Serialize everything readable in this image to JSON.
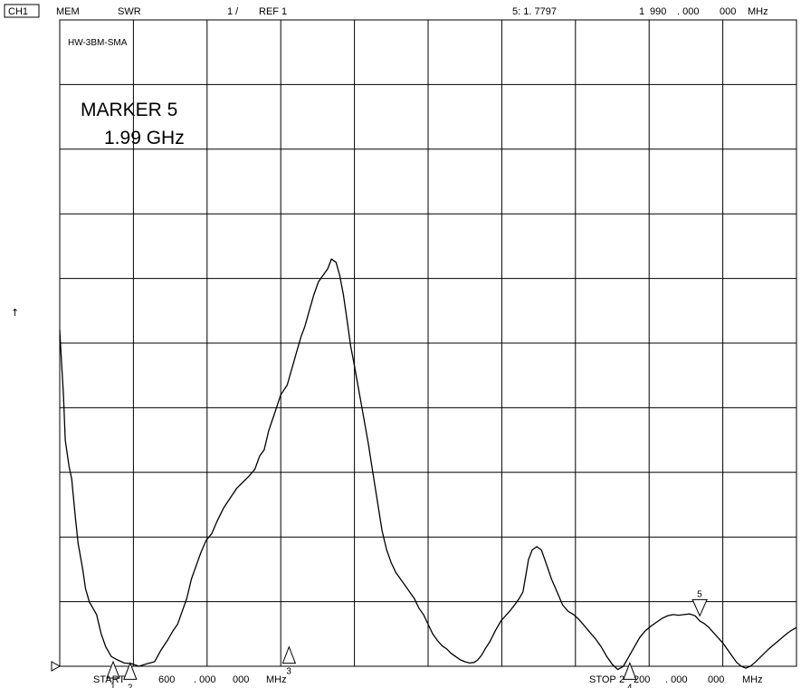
{
  "header": {
    "channel": "CH1",
    "mem": "MEM",
    "mode": "SWR",
    "scale": "1 /",
    "ref": "REF 1",
    "marker_readout": "5:  1. 7797",
    "marker_freq_a": "1",
    "marker_freq_b": "990",
    "marker_freq_c": ". 000",
    "marker_freq_d": "000",
    "marker_freq_unit": "MHz"
  },
  "footer": {
    "start_label": "START",
    "start_a": "600",
    "start_b": ". 000",
    "start_c": "000",
    "start_unit": "MHz",
    "stop_label": "STOP",
    "stop_a": "2",
    "stop_b": "200",
    "stop_c": ". 000",
    "stop_d": "000",
    "stop_unit": "MHz"
  },
  "annotations": {
    "device": "HW-3BM-SMA",
    "marker_title": "MARKER 5",
    "marker_value": "1.99 GHz"
  },
  "reference_arrow": "↑",
  "chart_data": {
    "type": "line",
    "xlabel": "",
    "ylabel": "",
    "xlim": [
      600,
      2200
    ],
    "ylim": [
      1,
      11
    ],
    "grid": true,
    "x_unit": "MHz",
    "y_unit": "SWR",
    "reference_level": 1,
    "scale_per_div": 1,
    "series": [
      {
        "x": [
          600,
          604,
          608,
          612,
          620,
          626,
          634,
          640,
          650,
          656,
          664,
          672,
          680,
          690,
          700,
          712,
          725,
          740,
          756,
          772,
          790,
          806,
          820,
          834,
          846,
          856,
          866,
          876,
          886,
          896,
          906,
          918,
          930,
          942,
          956,
          970,
          984,
          998,
          1012,
          1024,
          1034,
          1044,
          1054,
          1066,
          1080,
          1094,
          1108,
          1116,
          1124,
          1132,
          1142,
          1152,
          1162,
          1172,
          1182,
          1190,
          1200,
          1208,
          1216,
          1224,
          1232,
          1240,
          1250,
          1260,
          1270,
          1280,
          1290,
          1300,
          1310,
          1320,
          1330,
          1340,
          1350,
          1360,
          1370,
          1380,
          1390,
          1400,
          1410,
          1420,
          1430,
          1440,
          1450,
          1460,
          1470,
          1480,
          1490,
          1500,
          1508,
          1516,
          1524,
          1534,
          1546,
          1558,
          1568,
          1578,
          1588,
          1598,
          1606,
          1612,
          1618,
          1626,
          1636,
          1646,
          1656,
          1668,
          1680,
          1692,
          1704,
          1716,
          1728,
          1740,
          1752,
          1764,
          1776,
          1788,
          1800,
          1812,
          1824,
          1836,
          1848,
          1860,
          1872,
          1884,
          1896,
          1908,
          1920,
          1932,
          1944,
          1956,
          1968,
          1980,
          1990,
          2000,
          2010,
          2020,
          2030,
          2040,
          2050,
          2060,
          2070,
          2080,
          2090,
          2100,
          2110,
          2120,
          2130,
          2140,
          2150,
          2160,
          2170,
          2180,
          2190,
          2200
        ],
        "values": [
          6.2,
          5.7,
          5.2,
          4.5,
          4.1,
          3.9,
          3.3,
          2.9,
          2.5,
          2.2,
          2.0,
          1.9,
          1.8,
          1.5,
          1.3,
          1.15,
          1.1,
          1.05,
          1.04,
          1.0,
          1.04,
          1.07,
          1.25,
          1.4,
          1.55,
          1.65,
          1.85,
          2.05,
          2.35,
          2.55,
          2.75,
          2.95,
          3.05,
          3.25,
          3.45,
          3.6,
          3.75,
          3.85,
          3.95,
          4.05,
          4.25,
          4.35,
          4.65,
          4.9,
          5.2,
          5.35,
          5.7,
          5.9,
          6.1,
          6.25,
          6.5,
          6.75,
          6.95,
          7.05,
          7.15,
          7.3,
          7.25,
          7.05,
          6.75,
          6.35,
          5.95,
          5.65,
          5.25,
          4.85,
          4.45,
          4.0,
          3.55,
          3.1,
          2.8,
          2.6,
          2.45,
          2.35,
          2.25,
          2.15,
          2.05,
          1.9,
          1.8,
          1.65,
          1.5,
          1.4,
          1.32,
          1.27,
          1.2,
          1.15,
          1.1,
          1.07,
          1.05,
          1.06,
          1.1,
          1.17,
          1.27,
          1.38,
          1.55,
          1.7,
          1.78,
          1.86,
          1.95,
          2.05,
          2.15,
          2.4,
          2.65,
          2.8,
          2.85,
          2.8,
          2.6,
          2.35,
          2.15,
          1.95,
          1.85,
          1.8,
          1.72,
          1.62,
          1.52,
          1.42,
          1.3,
          1.15,
          1.03,
          0.95,
          1.0,
          1.15,
          1.3,
          1.45,
          1.55,
          1.62,
          1.68,
          1.74,
          1.78,
          1.8,
          1.79,
          1.8,
          1.81,
          1.78,
          1.7,
          1.66,
          1.6,
          1.52,
          1.44,
          1.36,
          1.26,
          1.16,
          1.06,
          1.0,
          0.97,
          1.0,
          1.06,
          1.13,
          1.2,
          1.27,
          1.33,
          1.39,
          1.45,
          1.51,
          1.56,
          1.6
        ]
      }
    ],
    "markers": [
      {
        "label": "1",
        "x": 716,
        "y": 1.07,
        "direction": "up"
      },
      {
        "label": "2",
        "x": 753,
        "y": 1.05,
        "direction": "up"
      },
      {
        "label": "3",
        "x": 1098,
        "y": 1.3,
        "direction": "up"
      },
      {
        "label": "4",
        "x": 1838,
        "y": 1.05,
        "direction": "up"
      },
      {
        "label": "5",
        "x": 1990,
        "y": 1.7797,
        "direction": "down"
      }
    ]
  },
  "colors": {
    "background": "#ffffff",
    "trace": "#000000",
    "grid": "#000000"
  }
}
